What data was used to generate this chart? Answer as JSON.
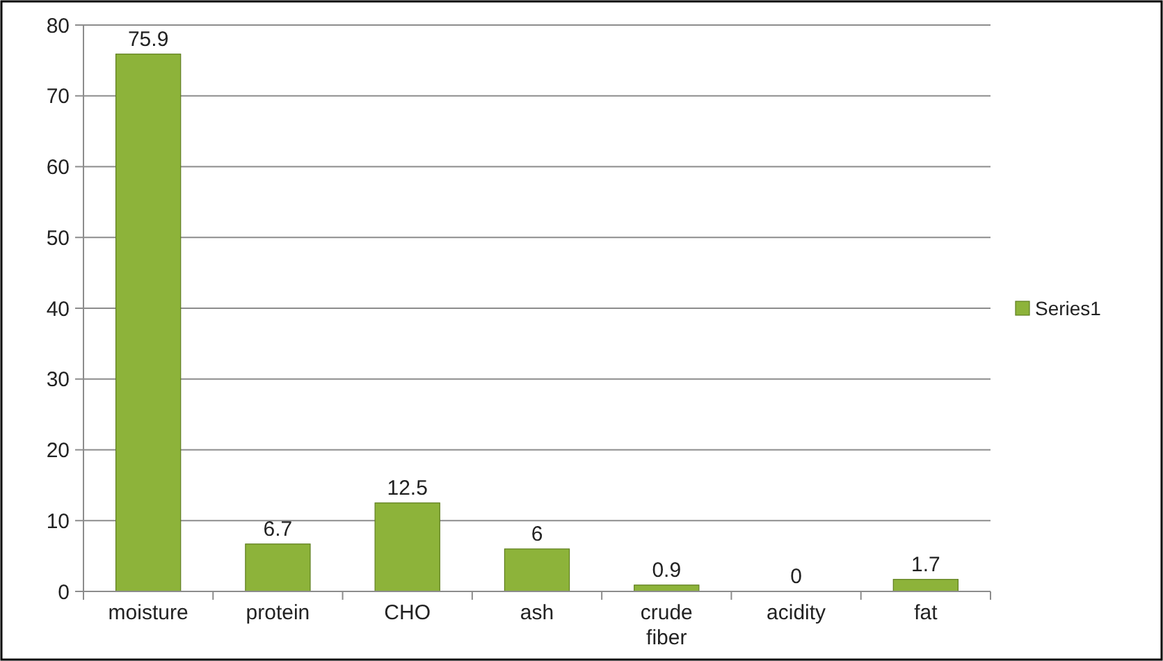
{
  "chart_data": {
    "type": "bar",
    "categories": [
      "moisture",
      "protein",
      "CHO",
      "ash",
      "crude fiber",
      "acidity",
      "fat"
    ],
    "series": [
      {
        "name": "Series1",
        "color": "#8db33a",
        "values": [
          75.9,
          6.7,
          12.5,
          6,
          0.9,
          0,
          1.7
        ]
      }
    ],
    "ylim": [
      0,
      80
    ],
    "yticks": [
      0,
      10,
      20,
      30,
      40,
      50,
      60,
      70,
      80
    ],
    "grid": "y",
    "legend": "right",
    "data_labels": true
  }
}
